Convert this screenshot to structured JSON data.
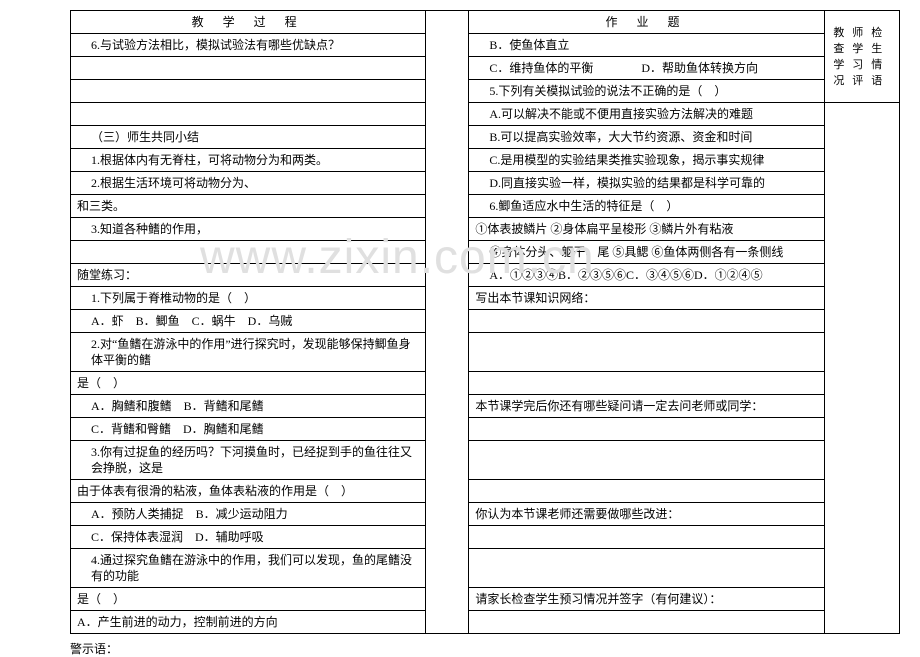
{
  "watermark": "www.zixin.com.cn",
  "footer": "警示语：",
  "headers": {
    "left": "教 学 过 程",
    "right": "作 业 题",
    "note": "教师检查学生学习情况评语"
  },
  "left_rows": [
    {
      "text": "6.与试验方法相比，模拟试验法有哪些优缺点？",
      "indent": true
    },
    {
      "text": ""
    },
    {
      "text": ""
    },
    {
      "text": ""
    },
    {
      "text": "（三）师生共同小结",
      "indent": true
    },
    {
      "text": "1.根据体内有无脊柱，可将动物分为和两类。",
      "indent": true
    },
    {
      "text": "2.根据生活环境可将动物分为、",
      "indent": true
    },
    {
      "text": "和三类。"
    },
    {
      "text": "3.知道各种鳍的作用，",
      "indent": true
    },
    {
      "text": ""
    },
    {
      "text": "随堂练习："
    },
    {
      "text": "1.下列属于脊椎动物的是（　）",
      "indent": true
    },
    {
      "text": "A．虾　B．鲫鱼　C．蜗牛　D．乌贼",
      "indent": true
    },
    {
      "text": "2.对“鱼鳍在游泳中的作用”进行探究时，发现能够保持鲫鱼身体平衡的鳍",
      "indent": true
    },
    {
      "text": "是（　）"
    },
    {
      "text": "A．胸鳍和腹鳍　B．背鳍和尾鳍",
      "indent": true
    },
    {
      "text": "C．背鳍和臀鳍　D．胸鳍和尾鳍",
      "indent": true
    },
    {
      "text": "3.你有过捉鱼的经历吗？下河摸鱼时，已经捉到手的鱼往往又会挣脱，这是",
      "indent": true
    },
    {
      "text": "由于体表有很滑的粘液，鱼体表粘液的作用是（　）"
    },
    {
      "text": "A．预防人类捕捉　B．减少运动阻力",
      "indent": true
    },
    {
      "text": "C．保持体表湿润　D．辅助呼吸",
      "indent": true
    },
    {
      "text": "4.通过探究鱼鳍在游泳中的作用，我们可以发现，鱼的尾鳍没有的功能",
      "indent": true
    },
    {
      "text": "是（　）"
    },
    {
      "text": "A．产生前进的动力，控制前进的方向"
    }
  ],
  "right_rows": [
    {
      "text": "B．使鱼体直立",
      "indent": true
    },
    {
      "text": "C．维持鱼体的平衡　　　　D．帮助鱼体转换方向",
      "indent": true
    },
    {
      "text": "5.下列有关模拟试验的说法不正确的是（　）",
      "indent": true
    },
    {
      "text": "A.可以解决不能或不便用直接实验方法解决的难题",
      "indent": true
    },
    {
      "text": "B.可以提高实验效率，大大节约资源、资金和时间",
      "indent": true
    },
    {
      "text": "C.是用模型的实验结果类推实验现象，揭示事实规律",
      "indent": true
    },
    {
      "text": "D.同直接实验一样，模拟实验的结果都是科学可靠的",
      "indent": true
    },
    {
      "text": "6.鲫鱼适应水中生活的特征是（　）",
      "indent": true
    },
    {
      "text": "①体表披鳞片 ②身体扁平呈梭形 ③鳞片外有粘液"
    },
    {
      "text": "④身体分头、躯干、尾 ⑤具鳃 ⑥鱼体两侧各有一条侧线",
      "indent": true
    },
    {
      "text": "A．①②③④B．②③⑤⑥C．③④⑤⑥D．①②④⑤",
      "indent": true
    },
    {
      "text": "写出本节课知识网络："
    },
    {
      "text": ""
    },
    {
      "text": ""
    },
    {
      "text": ""
    },
    {
      "text": "本节课学完后你还有哪些疑问请一定去问老师或同学："
    },
    {
      "text": ""
    },
    {
      "text": ""
    },
    {
      "text": ""
    },
    {
      "text": "你认为本节课老师还需要做哪些改进："
    },
    {
      "text": ""
    },
    {
      "text": ""
    },
    {
      "text": "请家长检查学生预习情况并签字（有何建议）："
    },
    {
      "text": ""
    }
  ]
}
